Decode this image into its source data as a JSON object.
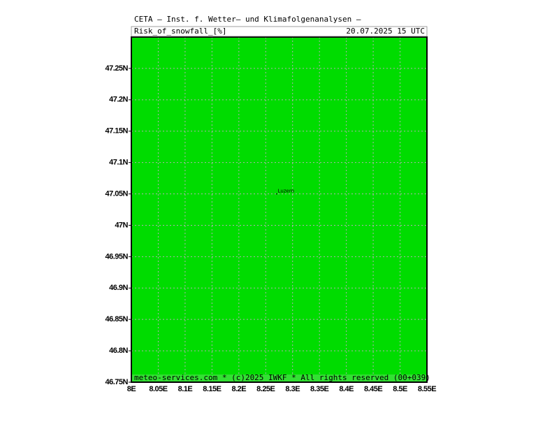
{
  "header": {
    "institute": "CETA — Inst. f. Wetter— und Klimafolgenanalysen —",
    "parameter": "Risk_of_snowfall_[%]",
    "valid_time": "20.07.2025 15 UTC"
  },
  "map": {
    "fill_color": "#00dc00",
    "grid": true,
    "xlim": [
      8,
      8.55
    ],
    "ylim": [
      46.75,
      47.3
    ],
    "xticks": [
      {
        "value": 8,
        "label": "8E"
      },
      {
        "value": 8.05,
        "label": "8.05E"
      },
      {
        "value": 8.1,
        "label": "8.1E"
      },
      {
        "value": 8.15,
        "label": "8.15E"
      },
      {
        "value": 8.2,
        "label": "8.2E"
      },
      {
        "value": 8.25,
        "label": "8.25E"
      },
      {
        "value": 8.3,
        "label": "8.3E"
      },
      {
        "value": 8.35,
        "label": "8.35E"
      },
      {
        "value": 8.4,
        "label": "8.4E"
      },
      {
        "value": 8.45,
        "label": "8.45E"
      },
      {
        "value": 8.5,
        "label": "8.5E"
      },
      {
        "value": 8.55,
        "label": "8.55E"
      }
    ],
    "yticks": [
      {
        "value": 46.75,
        "label": "46.75N"
      },
      {
        "value": 46.8,
        "label": "46.8N"
      },
      {
        "value": 46.85,
        "label": "46.85N"
      },
      {
        "value": 46.9,
        "label": "46.9N"
      },
      {
        "value": 46.95,
        "label": "46.95N"
      },
      {
        "value": 47,
        "label": "47N"
      },
      {
        "value": 47.05,
        "label": "47.05N"
      },
      {
        "value": 47.1,
        "label": "47.1N"
      },
      {
        "value": 47.15,
        "label": "47.15N"
      },
      {
        "value": 47.2,
        "label": "47.2N"
      },
      {
        "value": 47.25,
        "label": "47.25N"
      }
    ],
    "cities": [
      {
        "name": "Luzern",
        "lon": 8.27,
        "lat": 47.05
      }
    ]
  },
  "footer": {
    "text": "meteo-services.com * (c)2025 IWKF * All rights reserved (00+039)"
  }
}
